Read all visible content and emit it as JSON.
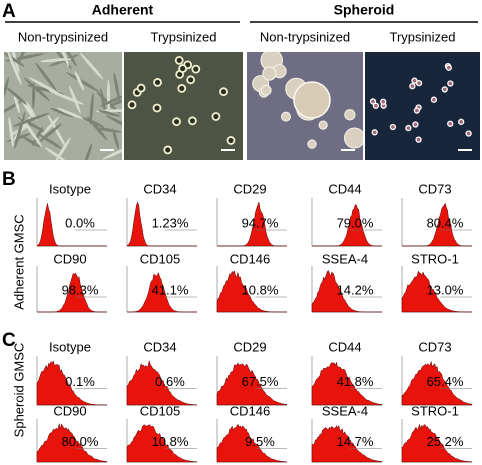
{
  "panel_a": {
    "label": "A",
    "groups": [
      {
        "title": "Adherent",
        "captions": [
          "Non-trypsinized",
          "Trypsinized"
        ]
      },
      {
        "title": "Spheroid",
        "captions": [
          "Non-trypsinized",
          "Trypsinized"
        ]
      }
    ]
  },
  "panel_b": {
    "label": "B",
    "row_title": "Adherent GMSC",
    "histograms": [
      {
        "marker": "Isotype",
        "percent": "0.0%"
      },
      {
        "marker": "CD34",
        "percent": "1.23%"
      },
      {
        "marker": "CD29",
        "percent": "94.7%"
      },
      {
        "marker": "CD44",
        "percent": "79.0%"
      },
      {
        "marker": "CD73",
        "percent": "80.4%"
      },
      {
        "marker": "CD90",
        "percent": "98.3%"
      },
      {
        "marker": "CD105",
        "percent": "41.1%"
      },
      {
        "marker": "CD146",
        "percent": "10.8%"
      },
      {
        "marker": "SSEA-4",
        "percent": "14.2%"
      },
      {
        "marker": "STRO-1",
        "percent": "13.0%"
      }
    ]
  },
  "panel_c": {
    "label": "C",
    "row_title": "Spheroid GMSC",
    "histograms": [
      {
        "marker": "Isotype",
        "percent": "0.1%"
      },
      {
        "marker": "CD34",
        "percent": "0.6%"
      },
      {
        "marker": "CD29",
        "percent": "67.5%"
      },
      {
        "marker": "CD44",
        "percent": "41.8%"
      },
      {
        "marker": "CD73",
        "percent": "65.4%"
      },
      {
        "marker": "CD90",
        "percent": "80.0%"
      },
      {
        "marker": "CD105",
        "percent": "10.8%"
      },
      {
        "marker": "CD146",
        "percent": "9.5%"
      },
      {
        "marker": "SSEA-4",
        "percent": "14.7%"
      },
      {
        "marker": "STRO-1",
        "percent": "25.2%"
      }
    ]
  }
}
